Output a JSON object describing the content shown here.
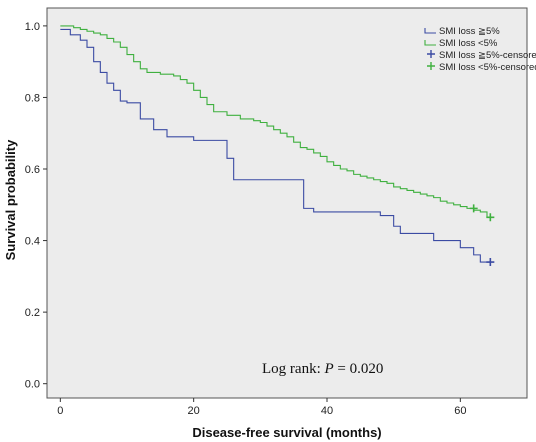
{
  "chart_data": {
    "type": "line",
    "subtype": "kaplan-meier step curves",
    "xlabel": "Disease-free survival (months)",
    "ylabel": "Survival probability",
    "xlim": [
      -2,
      70
    ],
    "ylim": [
      -0.04,
      1.05
    ],
    "xticks": [
      0,
      20,
      40,
      60
    ],
    "yticks": [
      0.0,
      0.2,
      0.4,
      0.6,
      0.8,
      1.0
    ],
    "xtick_labels": [
      "0",
      "20",
      "40",
      "60"
    ],
    "ytick_labels": [
      "0.0",
      "0.2",
      "0.4",
      "0.6",
      "0.8",
      "1.0"
    ],
    "grid": false,
    "legend_position": "top-right",
    "background": "#ececec",
    "annotation": {
      "prefix": "Log rank: ",
      "italic": "P",
      "suffix": " = 0.020"
    },
    "legend": [
      {
        "label": "SMI loss  ≧5%",
        "kind": "line",
        "color": "#3b4ba3"
      },
      {
        "label": "SMI loss  <5%",
        "kind": "line",
        "color": "#3fb03f"
      },
      {
        "label": "SMI loss  ≧5%-censored",
        "kind": "censor",
        "color": "#3b4ba3"
      },
      {
        "label": "SMI loss  <5%-censored",
        "kind": "censor",
        "color": "#3fb03f"
      }
    ],
    "series": [
      {
        "name": "SMI loss  ≧5%",
        "color": "#3b4ba3",
        "x": [
          0,
          1.5,
          3,
          4,
          5,
          6,
          7,
          8,
          9,
          10,
          12,
          14,
          16,
          20,
          25,
          26,
          36.5,
          38,
          45,
          48,
          50,
          51,
          56,
          60,
          62,
          63,
          64
        ],
        "y": [
          0.99,
          0.975,
          0.96,
          0.94,
          0.9,
          0.87,
          0.84,
          0.82,
          0.79,
          0.785,
          0.74,
          0.71,
          0.69,
          0.68,
          0.63,
          0.57,
          0.49,
          0.48,
          0.48,
          0.47,
          0.44,
          0.42,
          0.4,
          0.38,
          0.36,
          0.34,
          0.34
        ],
        "censored": [
          {
            "x": 64.5,
            "y": 0.34
          }
        ]
      },
      {
        "name": "SMI loss  <5%",
        "color": "#3fb03f",
        "x": [
          0,
          2,
          3,
          4,
          5,
          6,
          7,
          8,
          9,
          10,
          11,
          12,
          13,
          15,
          17,
          18,
          19,
          20,
          21,
          22,
          23,
          25,
          27,
          29,
          30,
          31,
          32,
          33,
          34,
          35,
          36,
          37,
          38,
          39,
          40,
          41,
          42,
          43,
          44,
          45,
          46,
          47,
          48,
          49,
          50,
          51,
          52,
          53,
          54,
          55,
          56,
          57,
          58,
          59,
          60,
          61,
          62,
          63,
          64
        ],
        "y": [
          1.0,
          0.995,
          0.99,
          0.985,
          0.98,
          0.975,
          0.965,
          0.955,
          0.94,
          0.92,
          0.9,
          0.88,
          0.87,
          0.865,
          0.86,
          0.85,
          0.84,
          0.82,
          0.8,
          0.78,
          0.76,
          0.75,
          0.74,
          0.735,
          0.73,
          0.72,
          0.71,
          0.7,
          0.69,
          0.675,
          0.66,
          0.655,
          0.645,
          0.635,
          0.62,
          0.61,
          0.6,
          0.595,
          0.585,
          0.58,
          0.575,
          0.57,
          0.565,
          0.56,
          0.55,
          0.545,
          0.54,
          0.535,
          0.53,
          0.525,
          0.52,
          0.51,
          0.505,
          0.5,
          0.495,
          0.49,
          0.485,
          0.48,
          0.465
        ],
        "censored": [
          {
            "x": 62,
            "y": 0.49
          },
          {
            "x": 64.5,
            "y": 0.465
          }
        ]
      }
    ]
  }
}
